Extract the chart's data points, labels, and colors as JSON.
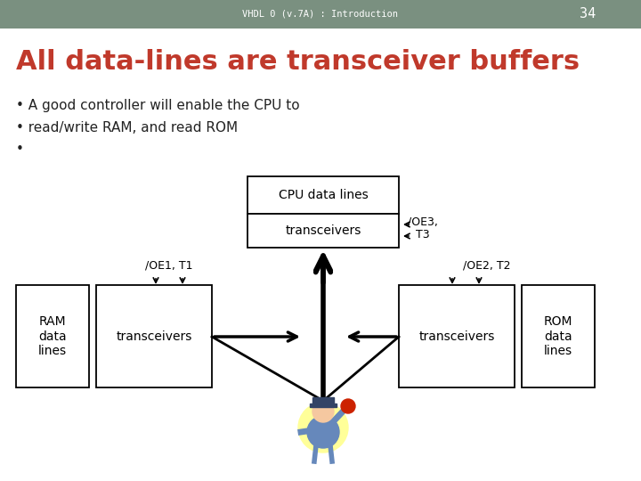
{
  "header_bg": "#7a9080",
  "header_text": "VHDL 0 (v.7A) : Introduction",
  "header_page": "34",
  "header_text_color": "#ffffff",
  "title": "All data-lines are transceiver buffers",
  "title_color": "#c0392b",
  "bullet1": "A good controller will enable the CPU to",
  "bullet2": "read/write RAM, and read ROM",
  "bg_color": "#ffffff",
  "figsize": [
    7.2,
    5.4
  ],
  "dpi": 100
}
